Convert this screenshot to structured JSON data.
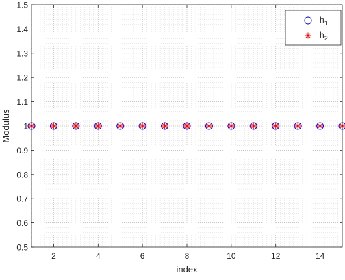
{
  "chart_data": {
    "type": "scatter",
    "title": "",
    "xlabel": "index",
    "ylabel": "Modulus",
    "xlim": [
      1,
      15
    ],
    "ylim": [
      0.5,
      1.5
    ],
    "xticks": [
      2,
      4,
      6,
      8,
      10,
      12,
      14
    ],
    "yticks": [
      0.5,
      0.6,
      0.7,
      0.8,
      0.9,
      1,
      1.1,
      1.2,
      1.3,
      1.4,
      1.5
    ],
    "grid": "major and minor, dotted",
    "legend_position": "top-right",
    "series": [
      {
        "name": "h",
        "subscript": "1",
        "marker": "circle",
        "color": "#0000ff",
        "x": [
          1,
          2,
          3,
          4,
          5,
          6,
          7,
          8,
          9,
          10,
          11,
          12,
          13,
          14,
          15
        ],
        "y": [
          1,
          1,
          1,
          1,
          1,
          1,
          1,
          1,
          1,
          1,
          1,
          1,
          1,
          1,
          1
        ]
      },
      {
        "name": "h",
        "subscript": "2",
        "marker": "asterisk",
        "color": "#ff0000",
        "x": [
          1,
          2,
          3,
          4,
          5,
          6,
          7,
          8,
          9,
          10,
          11,
          12,
          13,
          14,
          15
        ],
        "y": [
          1,
          1,
          1,
          1,
          1,
          1,
          1,
          1,
          1,
          1,
          1,
          1,
          1,
          1,
          1
        ]
      }
    ]
  }
}
